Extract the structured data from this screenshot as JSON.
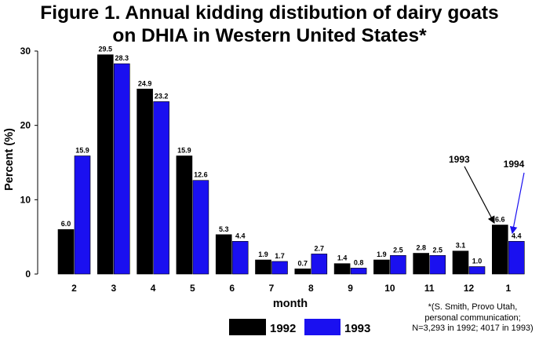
{
  "chart_data": {
    "type": "bar",
    "title_line1": "Figure 1. Annual kidding distibution of dairy goats",
    "title_line2": "on DHIA in Western United States*",
    "xlabel": "month",
    "ylabel": "Percent (%)",
    "ylim": [
      0,
      30
    ],
    "yticks": [
      0,
      10,
      20,
      30
    ],
    "categories": [
      "2",
      "3",
      "4",
      "5",
      "6",
      "7",
      "8",
      "9",
      "10",
      "11",
      "12",
      "1"
    ],
    "series": [
      {
        "name": "1992",
        "color": "#000000",
        "values": [
          6.0,
          29.5,
          24.9,
          15.9,
          5.3,
          1.9,
          0.7,
          1.4,
          1.9,
          2.8,
          3.1,
          6.6
        ],
        "labels": [
          "6.0",
          "29.5",
          "24.9",
          "15.9",
          "5.3",
          "1.9",
          "0.7",
          "1.4",
          "1.9",
          "2.8",
          "3.1",
          "6.6"
        ]
      },
      {
        "name": "1993",
        "color": "#1a10f0",
        "values": [
          15.9,
          28.3,
          23.2,
          12.6,
          4.4,
          1.7,
          2.7,
          0.8,
          2.5,
          2.5,
          1.0,
          4.4
        ],
        "labels": [
          "15.9",
          "28.3",
          "23.2",
          "12.6",
          "4.4",
          "1.7",
          "2.7",
          "0.8",
          "2.5",
          "2.5",
          "1.0",
          "4.4"
        ]
      }
    ],
    "grid": false,
    "legend": "bottom-left",
    "annotations": [
      {
        "text": "1993",
        "color": "#000000"
      },
      {
        "text": "1994",
        "color": "#1a10f0"
      }
    ]
  },
  "footnote": {
    "line1": "*(S. Smith, Provo Utah,",
    "line2": "personal communication;",
    "line3": "N=3,293 in 1992; 4017 in 1993)"
  }
}
